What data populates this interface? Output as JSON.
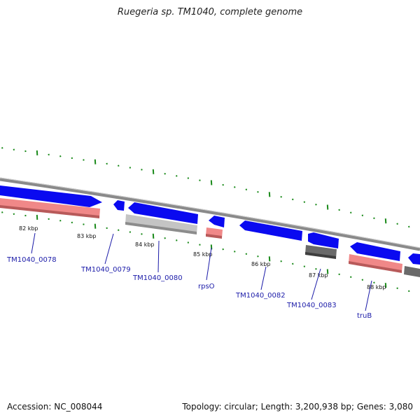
{
  "title": "Ruegeria sp. TM1040, complete genome",
  "footer": {
    "accession": "Accession: NC_008044",
    "summary": "Topology: circular; Length: 3,200,938 bp; Genes: 3,080"
  },
  "colors": {
    "cds_forward": "#0a0af0",
    "gene_pink": "#f08888",
    "gene_light_gray": "#c4c4c4",
    "gene_dark_gray": "#6a6a6a",
    "backbone": "#8a8a8a",
    "gc_tick": "#1a8a1a",
    "label_blue": "#1a1aa8"
  },
  "position_labels": [
    "82 kbp",
    "83 kbp",
    "84 kbp",
    "85 kbp",
    "86 kbp",
    "87 kbp",
    "88 kbp"
  ],
  "gene_labels": [
    "TM1040_0078",
    "TM1040_0079",
    "TM1040_0080",
    "rpsO",
    "TM1040_0082",
    "TM1040_0083",
    "truB"
  ]
}
